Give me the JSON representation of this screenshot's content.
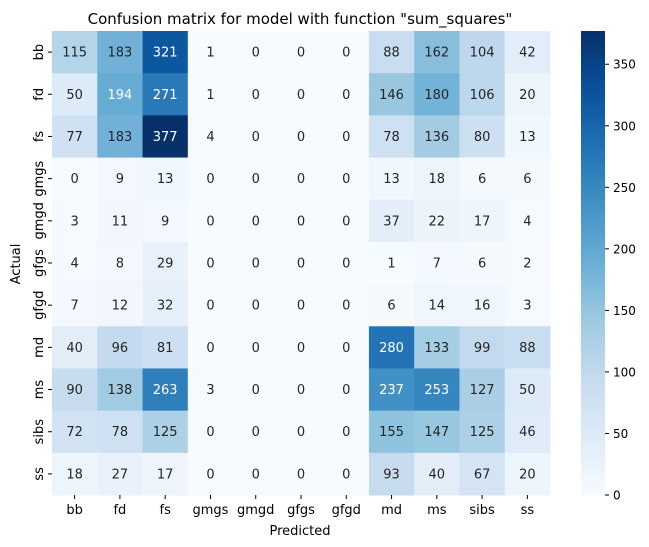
{
  "chart_data": {
    "type": "heatmap",
    "title": "Confusion matrix for model with function \"sum_squares\"",
    "xlabel": "Predicted",
    "ylabel": "Actual",
    "x_categories": [
      "bb",
      "fd",
      "fs",
      "gmgs",
      "gmgd",
      "gfgs",
      "gfgd",
      "md",
      "ms",
      "sibs",
      "ss"
    ],
    "y_categories": [
      "bb",
      "fd",
      "fs",
      "gmgs",
      "gmgd",
      "gfgs",
      "gfgd",
      "md",
      "ms",
      "sibs",
      "ss"
    ],
    "values": [
      [
        115,
        183,
        321,
        1,
        0,
        0,
        0,
        88,
        162,
        104,
        42
      ],
      [
        50,
        194,
        271,
        1,
        0,
        0,
        0,
        146,
        180,
        106,
        20
      ],
      [
        77,
        183,
        377,
        4,
        0,
        0,
        0,
        78,
        136,
        80,
        13
      ],
      [
        0,
        9,
        13,
        0,
        0,
        0,
        0,
        13,
        18,
        6,
        6
      ],
      [
        3,
        11,
        9,
        0,
        0,
        0,
        0,
        37,
        22,
        17,
        4
      ],
      [
        4,
        8,
        29,
        0,
        0,
        0,
        0,
        1,
        7,
        6,
        2
      ],
      [
        7,
        12,
        32,
        0,
        0,
        0,
        0,
        6,
        14,
        16,
        3
      ],
      [
        40,
        96,
        81,
        0,
        0,
        0,
        0,
        280,
        133,
        99,
        88
      ],
      [
        90,
        138,
        263,
        3,
        0,
        0,
        0,
        237,
        253,
        127,
        50
      ],
      [
        72,
        78,
        125,
        0,
        0,
        0,
        0,
        155,
        147,
        125,
        46
      ],
      [
        18,
        27,
        17,
        0,
        0,
        0,
        0,
        93,
        40,
        67,
        20
      ]
    ],
    "colormap": "Blues",
    "color_range": [
      0,
      377
    ],
    "colorbar_ticks": [
      0,
      50,
      100,
      150,
      200,
      250,
      300,
      350
    ],
    "colors": {
      "low": "#f7fbff",
      "high": "#08306b",
      "text_dark": "#262626",
      "text_light": "#ffffff"
    }
  }
}
